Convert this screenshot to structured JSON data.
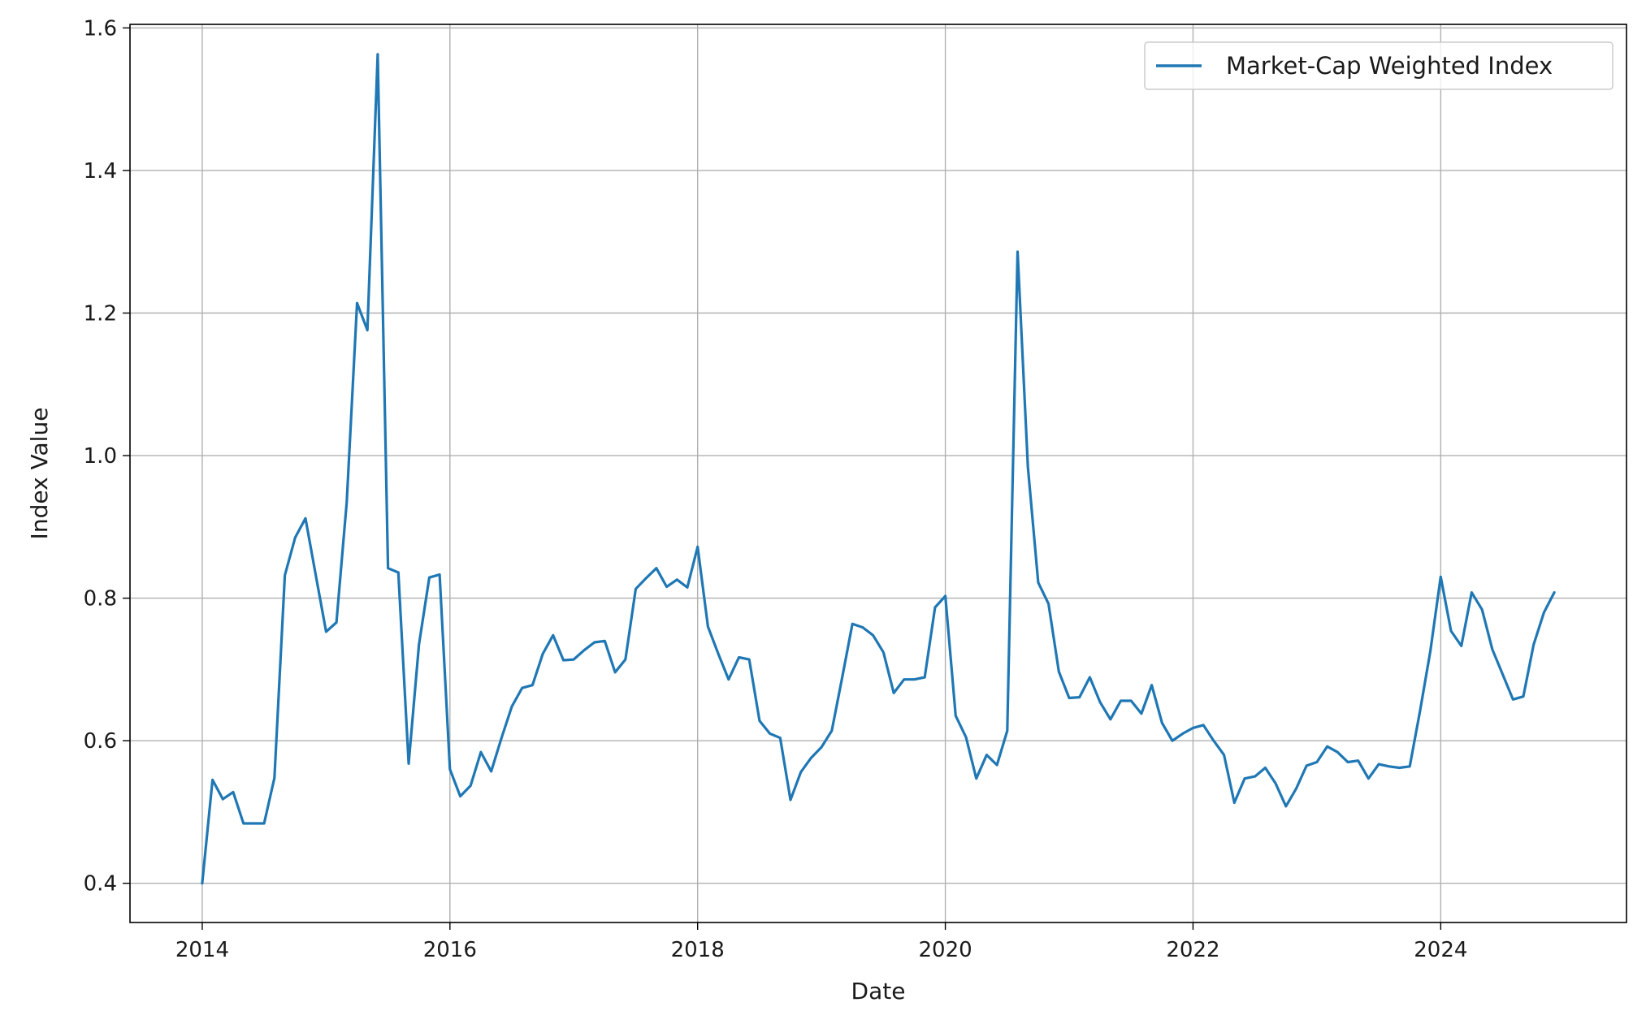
{
  "chart_data": {
    "type": "line",
    "title": "",
    "xlabel": "Date",
    "ylabel": "Index Value",
    "xlim": [
      "2013-06",
      "2025-07"
    ],
    "ylim": [
      0.345,
      1.605
    ],
    "x_ticks": [
      {
        "date": "2014-01",
        "label": "2014"
      },
      {
        "date": "2016-01",
        "label": "2016"
      },
      {
        "date": "2018-01",
        "label": "2018"
      },
      {
        "date": "2020-01",
        "label": "2020"
      },
      {
        "date": "2022-01",
        "label": "2022"
      },
      {
        "date": "2024-01",
        "label": "2024"
      }
    ],
    "y_ticks": [
      {
        "value": 0.4,
        "label": "0.4"
      },
      {
        "value": 0.6,
        "label": "0.6"
      },
      {
        "value": 0.8,
        "label": "0.8"
      },
      {
        "value": 1.0,
        "label": "1.0"
      },
      {
        "value": 1.2,
        "label": "1.2"
      },
      {
        "value": 1.4,
        "label": "1.4"
      },
      {
        "value": 1.6,
        "label": "1.6"
      }
    ],
    "grid": true,
    "legend_position": "top-right",
    "series": [
      {
        "name": "Market-Cap Weighted Index",
        "color": "#1f77b4",
        "x": [
          "2014-01",
          "2014-02",
          "2014-03",
          "2014-04",
          "2014-05",
          "2014-06",
          "2014-07",
          "2014-08",
          "2014-09",
          "2014-10",
          "2014-11",
          "2014-12",
          "2015-01",
          "2015-02",
          "2015-03",
          "2015-04",
          "2015-05",
          "2015-06",
          "2015-07",
          "2015-08",
          "2015-09",
          "2015-10",
          "2015-11",
          "2015-12",
          "2016-01",
          "2016-02",
          "2016-03",
          "2016-04",
          "2016-05",
          "2016-06",
          "2016-07",
          "2016-08",
          "2016-09",
          "2016-10",
          "2016-11",
          "2016-12",
          "2017-01",
          "2017-02",
          "2017-03",
          "2017-04",
          "2017-05",
          "2017-06",
          "2017-07",
          "2017-08",
          "2017-09",
          "2017-10",
          "2017-11",
          "2017-12",
          "2018-01",
          "2018-02",
          "2018-03",
          "2018-04",
          "2018-05",
          "2018-06",
          "2018-07",
          "2018-08",
          "2018-09",
          "2018-10",
          "2018-11",
          "2018-12",
          "2019-01",
          "2019-02",
          "2019-03",
          "2019-04",
          "2019-05",
          "2019-06",
          "2019-07",
          "2019-08",
          "2019-09",
          "2019-10",
          "2019-11",
          "2019-12",
          "2020-01",
          "2020-02",
          "2020-03",
          "2020-04",
          "2020-05",
          "2020-06",
          "2020-07",
          "2020-08",
          "2020-09",
          "2020-10",
          "2020-11",
          "2020-12",
          "2021-01",
          "2021-02",
          "2021-03",
          "2021-04",
          "2021-05",
          "2021-06",
          "2021-07",
          "2021-08",
          "2021-09",
          "2021-10",
          "2021-11",
          "2021-12",
          "2022-01",
          "2022-02",
          "2022-03",
          "2022-04",
          "2022-05",
          "2022-06",
          "2022-07",
          "2022-08",
          "2022-09",
          "2022-10",
          "2022-11",
          "2022-12",
          "2023-01",
          "2023-02",
          "2023-03",
          "2023-04",
          "2023-05",
          "2023-06",
          "2023-07",
          "2023-08",
          "2023-09",
          "2023-10",
          "2023-11",
          "2023-12",
          "2024-01",
          "2024-02",
          "2024-03",
          "2024-04",
          "2024-05",
          "2024-06",
          "2024-07",
          "2024-08",
          "2024-09",
          "2024-10",
          "2024-11",
          "2024-12"
        ],
        "values": [
          0.4,
          0.545,
          0.518,
          0.528,
          0.484,
          0.484,
          0.484,
          0.548,
          0.832,
          0.885,
          0.912,
          0.832,
          0.753,
          0.766,
          0.935,
          1.214,
          1.176,
          1.563,
          0.842,
          0.836,
          0.568,
          0.735,
          0.829,
          0.833,
          0.56,
          0.522,
          0.537,
          0.584,
          0.557,
          0.604,
          0.648,
          0.674,
          0.678,
          0.722,
          0.748,
          0.713,
          0.714,
          0.727,
          0.738,
          0.74,
          0.696,
          0.714,
          0.813,
          0.828,
          0.842,
          0.816,
          0.826,
          0.815,
          0.872,
          0.76,
          0.722,
          0.686,
          0.717,
          0.714,
          0.628,
          0.61,
          0.604,
          0.517,
          0.556,
          0.576,
          0.591,
          0.614,
          0.688,
          0.764,
          0.759,
          0.748,
          0.724,
          0.667,
          0.686,
          0.686,
          0.689,
          0.787,
          0.803,
          0.635,
          0.605,
          0.547,
          0.58,
          0.566,
          0.614,
          1.286,
          0.984,
          0.822,
          0.792,
          0.697,
          0.66,
          0.661,
          0.689,
          0.654,
          0.63,
          0.656,
          0.656,
          0.638,
          0.678,
          0.625,
          0.6,
          0.61,
          0.618,
          0.622,
          0.6,
          0.58,
          0.513,
          0.547,
          0.55,
          0.562,
          0.54,
          0.508,
          0.533,
          0.565,
          0.57,
          0.592,
          0.584,
          0.57,
          0.572,
          0.547,
          0.567,
          0.564,
          0.562,
          0.564,
          0.642,
          0.726,
          0.83,
          0.754,
          0.733,
          0.808,
          0.784,
          0.728,
          0.693,
          0.658,
          0.662,
          0.735,
          0.78,
          0.808
        ]
      }
    ]
  }
}
